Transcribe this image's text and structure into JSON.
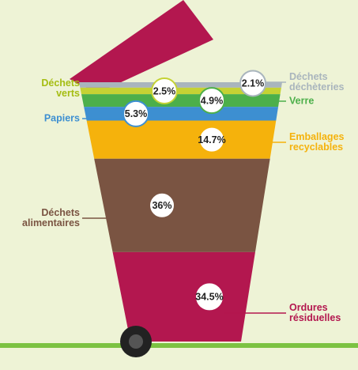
{
  "chart_data": {
    "type": "bin",
    "categories": [
      "Déchets déchèteries",
      "Déchets verts",
      "Verre",
      "Papiers",
      "Emballages recyclables",
      "Déchets alimentaires",
      "Ordures résiduelles"
    ],
    "values": [
      2.1,
      2.5,
      4.9,
      5.3,
      14.7,
      36,
      34.5
    ],
    "value_labels": [
      "2.1%",
      "2.5%",
      "4.9%",
      "5.3%",
      "14.7%",
      "36%",
      "34.5%"
    ],
    "colors": [
      "#a9b5bd",
      "#c5d234",
      "#4caf4a",
      "#3d8fd1",
      "#f5b20c",
      "#7a5442",
      "#b3174f"
    ]
  }
}
